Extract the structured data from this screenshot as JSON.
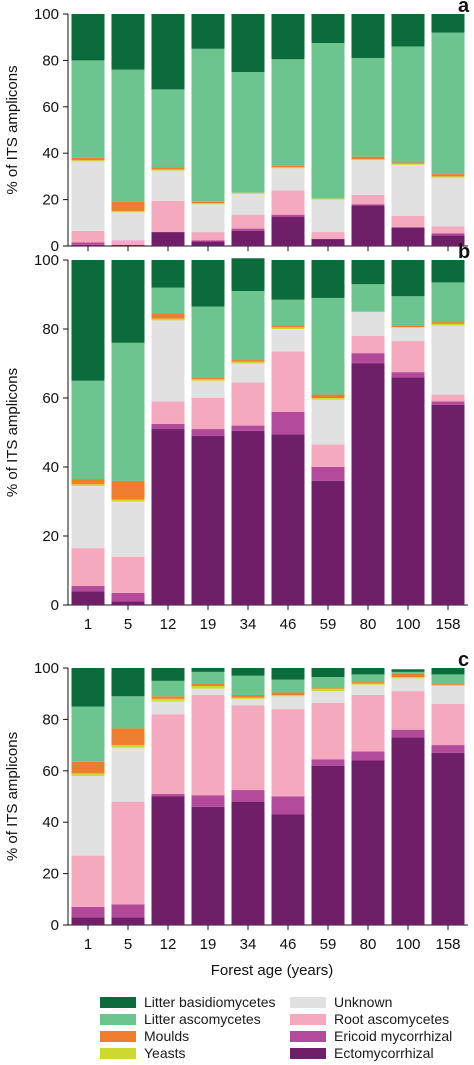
{
  "chart_data": [
    {
      "type": "bar",
      "panel_label": "a",
      "ylabel": "% of ITS amplicons",
      "ylim": [
        0,
        100
      ],
      "yticks": [
        0,
        20,
        40,
        60,
        80,
        100
      ],
      "categories": [
        "1",
        "5",
        "12",
        "19",
        "34",
        "46",
        "59",
        "80",
        "100",
        "158"
      ],
      "series": [
        {
          "name": "Ectomycorrhizal",
          "values": [
            0.5,
            0.5,
            6,
            2,
            6.5,
            12.5,
            3,
            17.5,
            8,
            4.5
          ]
        },
        {
          "name": "Ericoid mycorrhizal",
          "values": [
            1,
            0,
            0,
            0.5,
            1,
            1,
            0,
            0.5,
            0,
            1
          ]
        },
        {
          "name": "Root ascomycetes",
          "values": [
            5,
            2,
            13.5,
            3.5,
            6,
            10.5,
            3,
            4,
            5,
            3
          ]
        },
        {
          "name": "Unknown",
          "values": [
            30,
            12,
            13,
            12,
            9,
            9.5,
            14,
            15,
            22,
            21
          ]
        },
        {
          "name": "Yeasts",
          "values": [
            0.5,
            0.5,
            0.5,
            0.5,
            0.5,
            0.5,
            0.5,
            0.5,
            0.5,
            0.5
          ]
        },
        {
          "name": "Moulds",
          "values": [
            1,
            4,
            1,
            0.5,
            0,
            0.5,
            0,
            1,
            0.5,
            1
          ]
        },
        {
          "name": "Litter ascomycetes",
          "values": [
            42,
            57,
            33.5,
            66,
            52,
            46,
            67,
            42.5,
            50,
            61
          ]
        },
        {
          "name": "Litter basidiomycetes",
          "values": [
            20,
            24,
            32.5,
            15,
            25,
            19.5,
            12.5,
            19,
            14,
            8
          ]
        }
      ]
    },
    {
      "type": "bar",
      "panel_label": "b",
      "ylabel": "% of ITS amplicons",
      "ylim": [
        0,
        100
      ],
      "yticks": [
        0,
        20,
        40,
        60,
        80,
        100
      ],
      "categories": [
        "1",
        "5",
        "12",
        "19",
        "34",
        "46",
        "59",
        "80",
        "100",
        "158"
      ],
      "series": [
        {
          "name": "Ectomycorrhizal",
          "values": [
            4,
            1,
            51,
            49,
            50.5,
            49.5,
            36,
            70,
            66,
            58
          ]
        },
        {
          "name": "Ericoid mycorrhizal",
          "values": [
            1.5,
            2.5,
            1.5,
            2,
            1.5,
            6.5,
            4,
            3,
            1.5,
            1
          ]
        },
        {
          "name": "Root ascomycetes",
          "values": [
            11,
            10.5,
            6.5,
            9,
            12.5,
            17.5,
            6.5,
            5,
            9,
            2
          ]
        },
        {
          "name": "Unknown",
          "values": [
            18,
            16,
            23.5,
            5,
            5.5,
            6.5,
            13,
            7,
            4,
            20
          ]
        },
        {
          "name": "Yeasts",
          "values": [
            0.5,
            0.5,
            0.5,
            0.5,
            0.5,
            0.5,
            0.5,
            0,
            0,
            0.5
          ]
        },
        {
          "name": "Moulds",
          "values": [
            1.5,
            5.5,
            1.5,
            0.5,
            0.5,
            0.5,
            1,
            0,
            0.5,
            0.5
          ]
        },
        {
          "name": "Litter ascomycetes",
          "values": [
            28.5,
            40,
            7.5,
            20.5,
            20,
            7.5,
            28,
            8,
            8.5,
            11.5
          ]
        },
        {
          "name": "Litter basidiomycetes",
          "values": [
            35,
            24,
            8,
            13.5,
            9.5,
            11.5,
            11,
            7,
            10.5,
            6.5
          ]
        }
      ]
    },
    {
      "type": "bar",
      "panel_label": "c",
      "ylabel": "% of ITS amplicons",
      "xlabel": "Forest age (years)",
      "ylim": [
        0,
        100
      ],
      "yticks": [
        0,
        20,
        40,
        60,
        80,
        100
      ],
      "categories": [
        "1",
        "5",
        "12",
        "19",
        "34",
        "46",
        "59",
        "80",
        "100",
        "158"
      ],
      "series": [
        {
          "name": "Ectomycorrhizal",
          "values": [
            3,
            3,
            50,
            46,
            48,
            43,
            62,
            64,
            73,
            67
          ]
        },
        {
          "name": "Ericoid mycorrhizal",
          "values": [
            4,
            5,
            1,
            4.5,
            4.5,
            7,
            2.5,
            3.5,
            3,
            3
          ]
        },
        {
          "name": "Root ascomycetes",
          "values": [
            20,
            40,
            31,
            39,
            33,
            34,
            22,
            22,
            15,
            16
          ]
        },
        {
          "name": "Unknown",
          "values": [
            31,
            21,
            5,
            2.5,
            2.5,
            5,
            4.5,
            4,
            5,
            7
          ]
        },
        {
          "name": "Yeasts",
          "values": [
            1,
            1,
            1,
            1,
            0.5,
            0.5,
            1,
            0.5,
            0.5,
            0.5
          ]
        },
        {
          "name": "Moulds",
          "values": [
            4.5,
            6.5,
            1,
            1,
            1,
            1,
            0.5,
            0.5,
            1.5,
            0.5
          ]
        },
        {
          "name": "Litter ascomycetes",
          "values": [
            21.5,
            12.5,
            6,
            4.5,
            7.5,
            5,
            4,
            3,
            0.5,
            3.5
          ]
        },
        {
          "name": "Litter basidiomycetes",
          "values": [
            15,
            11,
            5,
            1.5,
            3,
            4.5,
            3.5,
            2.5,
            1,
            2.5
          ]
        }
      ]
    }
  ],
  "colors": {
    "Litter basidiomycetes": "#0b6b3a",
    "Litter ascomycetes": "#6cc48f",
    "Moulds": "#ef7d2e",
    "Yeasts": "#cbd930",
    "Unknown": "#e1e1e1",
    "Root ascomycetes": "#f4a9bf",
    "Ericoid mycorrhizal": "#b3499a",
    "Ectomycorrhizal": "#6f1f68"
  },
  "legend": [
    "Litter basidiomycetes",
    "Litter ascomycetes",
    "Moulds",
    "Yeasts",
    "Unknown",
    "Root ascomycetes",
    "Ericoid mycorrhizal",
    "Ectomycorrhizal"
  ]
}
